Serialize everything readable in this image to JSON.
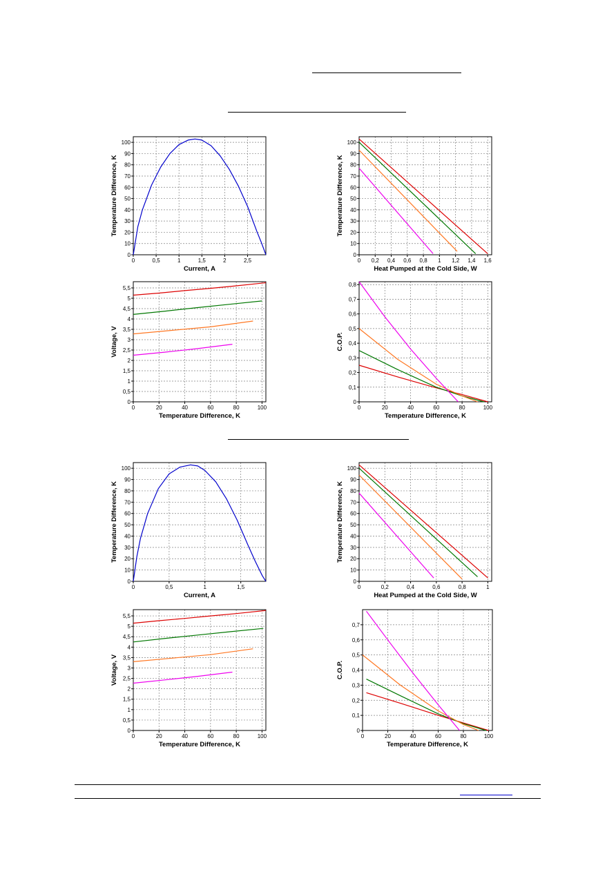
{
  "page": {
    "rules": [
      {
        "name": "header-link-underline"
      },
      {
        "name": "section-heading-underline-1"
      },
      {
        "name": "section-heading-underline-2"
      },
      {
        "name": "footer-rule-top"
      },
      {
        "name": "footer-rule-bottom"
      },
      {
        "name": "footer-link-underline"
      }
    ]
  },
  "colors": {
    "current_curve": "#0000cc",
    "series_red": "#dd0000",
    "series_green": "#007700",
    "series_orange": "#ff7722",
    "series_magenta": "#ee00ee",
    "grid": "#808080"
  },
  "chart_data": [
    {
      "id": "s1-dt-vs-current",
      "type": "line",
      "xlabel": "Current, A",
      "ylabel": "Temperature Difference, K",
      "xlim": [
        0,
        2.9
      ],
      "ylim": [
        0,
        105
      ],
      "xticks": [
        0,
        0.5,
        1,
        1.5,
        2,
        2.5
      ],
      "xticklabels": [
        "0",
        "0,5",
        "1",
        "1,5",
        "2",
        "2,5"
      ],
      "yticks": [
        0,
        10,
        20,
        30,
        40,
        50,
        60,
        70,
        80,
        90,
        100
      ],
      "yticklabels": [
        "0",
        "10",
        "20",
        "30",
        "40",
        "50",
        "60",
        "70",
        "80",
        "90",
        "100"
      ],
      "grid": true,
      "series": [
        {
          "color": "#0000cc",
          "x": [
            0,
            0.1,
            0.2,
            0.4,
            0.6,
            0.8,
            1.0,
            1.2,
            1.35,
            1.5,
            1.7,
            1.9,
            2.1,
            2.3,
            2.5,
            2.7,
            2.8,
            2.9
          ],
          "y": [
            0,
            25,
            40,
            62,
            78,
            90,
            98,
            102,
            103,
            102,
            97,
            88,
            76,
            61,
            43,
            21,
            11,
            0
          ]
        }
      ]
    },
    {
      "id": "s1-dt-vs-heat",
      "type": "line",
      "xlabel": "Heat Pumped at the Cold Side, W",
      "ylabel": "Temperature Difference, K",
      "xlim": [
        0,
        1.65
      ],
      "ylim": [
        0,
        105
      ],
      "xticks": [
        0,
        0.2,
        0.4,
        0.6,
        0.8,
        1,
        1.2,
        1.4,
        1.6
      ],
      "xticklabels": [
        "0",
        "0,2",
        "0,4",
        "0,6",
        "0,8",
        "1",
        "1,2",
        "1,4",
        "1,6"
      ],
      "yticks": [
        0,
        10,
        20,
        30,
        40,
        50,
        60,
        70,
        80,
        90,
        100
      ],
      "yticklabels": [
        "0",
        "10",
        "20",
        "30",
        "40",
        "50",
        "60",
        "70",
        "80",
        "90",
        "100"
      ],
      "grid": true,
      "series": [
        {
          "color": "#dd0000",
          "x": [
            0,
            1.6
          ],
          "y": [
            103,
            1
          ]
        },
        {
          "color": "#007700",
          "x": [
            0,
            1.45
          ],
          "y": [
            100,
            1
          ]
        },
        {
          "color": "#ff7722",
          "x": [
            0,
            1.22
          ],
          "y": [
            93,
            3
          ]
        },
        {
          "color": "#ee00ee",
          "x": [
            0,
            0.92
          ],
          "y": [
            77,
            1
          ]
        }
      ]
    },
    {
      "id": "s1-voltage-vs-dt",
      "type": "line",
      "xlabel": "Temperature Difference, K",
      "ylabel": "Voltage, V",
      "xlim": [
        0,
        103
      ],
      "ylim": [
        0,
        5.8
      ],
      "xticks": [
        0,
        20,
        40,
        60,
        80,
        100
      ],
      "xticklabels": [
        "0",
        "20",
        "40",
        "60",
        "80",
        "100"
      ],
      "yticks": [
        0,
        0.5,
        1,
        1.5,
        2,
        2.5,
        3,
        3.5,
        4,
        4.5,
        5,
        5.5
      ],
      "yticklabels": [
        "0",
        "0,5",
        "1",
        "1,5",
        "2",
        "2,5",
        "3",
        "3,5",
        "4",
        "4,5",
        "5",
        "5,5"
      ],
      "grid": true,
      "series": [
        {
          "color": "#dd0000",
          "x": [
            0,
            20,
            40,
            60,
            80,
            103
          ],
          "y": [
            5.15,
            5.25,
            5.37,
            5.48,
            5.6,
            5.75
          ]
        },
        {
          "color": "#007700",
          "x": [
            0,
            25,
            50,
            75,
            100
          ],
          "y": [
            4.22,
            4.38,
            4.55,
            4.71,
            4.87
          ]
        },
        {
          "color": "#ff7722",
          "x": [
            0,
            30,
            60,
            93
          ],
          "y": [
            3.28,
            3.45,
            3.62,
            3.9
          ]
        },
        {
          "color": "#ee00ee",
          "x": [
            0,
            25,
            50,
            77
          ],
          "y": [
            2.25,
            2.4,
            2.57,
            2.78
          ]
        }
      ]
    },
    {
      "id": "s1-cop-vs-dt",
      "type": "line",
      "xlabel": "Temperature Difference, K",
      "ylabel": "C.O.P.",
      "xlim": [
        0,
        103
      ],
      "ylim": [
        0,
        0.82
      ],
      "xticks": [
        0,
        20,
        40,
        60,
        80,
        100
      ],
      "xticklabels": [
        "0",
        "20",
        "40",
        "60",
        "80",
        "100"
      ],
      "yticks": [
        0,
        0.1,
        0.2,
        0.3,
        0.4,
        0.5,
        0.6,
        0.7,
        0.8
      ],
      "yticklabels": [
        "0",
        "0,1",
        "0,2",
        "0,3",
        "0,4",
        "0,5",
        "0,6",
        "0,7",
        "0,8"
      ],
      "grid": true,
      "series": [
        {
          "color": "#dd0000",
          "x": [
            0,
            30,
            60,
            80,
            100
          ],
          "y": [
            0.25,
            0.17,
            0.095,
            0.05,
            0
          ]
        },
        {
          "color": "#007700",
          "x": [
            0,
            30,
            60,
            80,
            97
          ],
          "y": [
            0.35,
            0.22,
            0.1,
            0.04,
            0
          ]
        },
        {
          "color": "#ff7722",
          "x": [
            0,
            30,
            60,
            80,
            92
          ],
          "y": [
            0.5,
            0.29,
            0.12,
            0.04,
            0
          ]
        },
        {
          "color": "#ee00ee",
          "x": [
            0,
            20,
            40,
            60,
            77
          ],
          "y": [
            0.82,
            0.58,
            0.36,
            0.16,
            0
          ]
        }
      ]
    },
    {
      "id": "s2-dt-vs-current",
      "type": "line",
      "xlabel": "Current, A",
      "ylabel": "Temperature Difference, K",
      "xlim": [
        0,
        1.85
      ],
      "ylim": [
        0,
        105
      ],
      "xticks": [
        0,
        0.5,
        1,
        1.5
      ],
      "xticklabels": [
        "0",
        "0,5",
        "1",
        "1,5"
      ],
      "yticks": [
        0,
        10,
        20,
        30,
        40,
        50,
        60,
        70,
        80,
        90,
        100
      ],
      "yticklabels": [
        "0",
        "10",
        "20",
        "30",
        "40",
        "50",
        "60",
        "70",
        "80",
        "90",
        "100"
      ],
      "grid": true,
      "series": [
        {
          "color": "#0000cc",
          "x": [
            0,
            0.05,
            0.1,
            0.2,
            0.35,
            0.5,
            0.65,
            0.8,
            0.9,
            1.0,
            1.15,
            1.3,
            1.45,
            1.6,
            1.7,
            1.8,
            1.85
          ],
          "y": [
            0,
            22,
            38,
            60,
            82,
            95,
            101,
            103,
            102,
            98,
            88,
            73,
            54,
            32,
            18,
            5,
            0
          ]
        }
      ]
    },
    {
      "id": "s2-dt-vs-heat",
      "type": "line",
      "xlabel": "Heat Pumped at the Cold Side, W",
      "ylabel": "Temperature Difference, K",
      "xlim": [
        0,
        1.03
      ],
      "ylim": [
        0,
        105
      ],
      "xticks": [
        0,
        0.2,
        0.4,
        0.6,
        0.8,
        1
      ],
      "xticklabels": [
        "0",
        "0,2",
        "0,4",
        "0,6",
        "0,8",
        "1"
      ],
      "yticks": [
        0,
        10,
        20,
        30,
        40,
        50,
        60,
        70,
        80,
        90,
        100
      ],
      "yticklabels": [
        "0",
        "10",
        "20",
        "30",
        "40",
        "50",
        "60",
        "70",
        "80",
        "90",
        "100"
      ],
      "grid": true,
      "series": [
        {
          "color": "#dd0000",
          "x": [
            0,
            1.0
          ],
          "y": [
            103,
            3
          ]
        },
        {
          "color": "#007700",
          "x": [
            0,
            0.92
          ],
          "y": [
            100,
            4
          ]
        },
        {
          "color": "#ff7722",
          "x": [
            0,
            0.8
          ],
          "y": [
            94,
            2
          ]
        },
        {
          "color": "#ee00ee",
          "x": [
            0,
            0.58
          ],
          "y": [
            78,
            3
          ]
        }
      ]
    },
    {
      "id": "s2-voltage-vs-dt",
      "type": "line",
      "xlabel": "Temperature Difference, K",
      "ylabel": "Voltage, V",
      "xlim": [
        0,
        103
      ],
      "ylim": [
        0,
        5.8
      ],
      "xticks": [
        0,
        20,
        40,
        60,
        80,
        100
      ],
      "xticklabels": [
        "0",
        "20",
        "40",
        "60",
        "80",
        "100"
      ],
      "yticks": [
        0,
        0.5,
        1,
        1.5,
        2,
        2.5,
        3,
        3.5,
        4,
        4.5,
        5,
        5.5
      ],
      "yticklabels": [
        "0",
        "0,5",
        "1",
        "1,5",
        "2",
        "2,5",
        "3",
        "3,5",
        "4",
        "4,5",
        "5",
        "5,5"
      ],
      "grid": true,
      "series": [
        {
          "color": "#dd0000",
          "x": [
            0,
            20,
            40,
            60,
            80,
            103
          ],
          "y": [
            5.15,
            5.27,
            5.38,
            5.5,
            5.61,
            5.76
          ]
        },
        {
          "color": "#007700",
          "x": [
            0,
            25,
            50,
            75,
            101
          ],
          "y": [
            4.25,
            4.42,
            4.58,
            4.74,
            4.9
          ]
        },
        {
          "color": "#ff7722",
          "x": [
            0,
            30,
            60,
            93
          ],
          "y": [
            3.3,
            3.47,
            3.64,
            3.92
          ]
        },
        {
          "color": "#ee00ee",
          "x": [
            0,
            25,
            50,
            77
          ],
          "y": [
            2.27,
            2.43,
            2.6,
            2.8
          ]
        }
      ]
    },
    {
      "id": "s2-cop-vs-dt",
      "type": "line",
      "xlabel": "Temperature Difference, K",
      "ylabel": "C.O.P.",
      "xlim": [
        0,
        103
      ],
      "ylim": [
        0,
        0.8
      ],
      "xticks": [
        0,
        20,
        40,
        60,
        80,
        100
      ],
      "xticklabels": [
        "0",
        "20",
        "40",
        "60",
        "80",
        "100"
      ],
      "yticks": [
        0,
        0.1,
        0.2,
        0.3,
        0.4,
        0.5,
        0.6,
        0.7
      ],
      "yticklabels": [
        "0",
        "0,1",
        "0,2",
        "0,3",
        "0,4",
        "0,5",
        "0,6",
        "0,7"
      ],
      "grid": true,
      "series": [
        {
          "color": "#dd0000",
          "x": [
            3,
            30,
            60,
            80,
            100
          ],
          "y": [
            0.25,
            0.18,
            0.1,
            0.05,
            0
          ]
        },
        {
          "color": "#007700",
          "x": [
            3,
            30,
            60,
            80,
            98
          ],
          "y": [
            0.34,
            0.23,
            0.11,
            0.045,
            0
          ]
        },
        {
          "color": "#ff7722",
          "x": [
            0,
            30,
            60,
            80,
            92
          ],
          "y": [
            0.5,
            0.3,
            0.13,
            0.04,
            0
          ]
        },
        {
          "color": "#ee00ee",
          "x": [
            3,
            20,
            40,
            60,
            77
          ],
          "y": [
            0.79,
            0.6,
            0.38,
            0.17,
            0
          ]
        }
      ]
    }
  ]
}
